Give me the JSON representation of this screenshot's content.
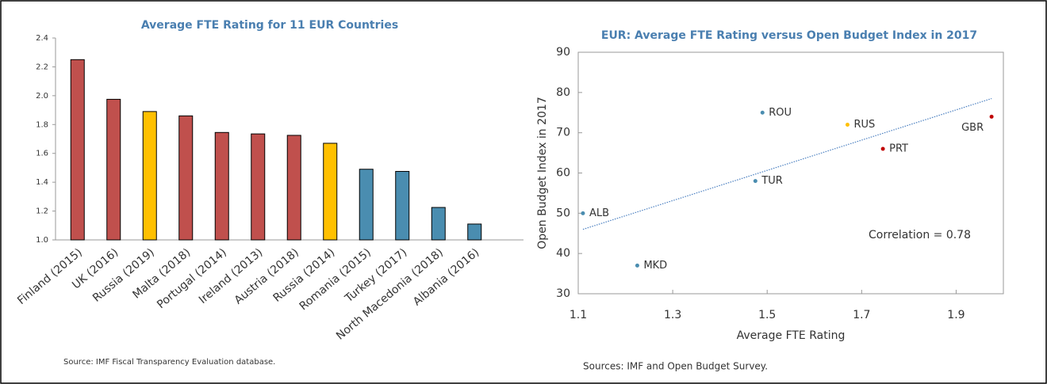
{
  "chart_data": [
    {
      "type": "bar",
      "title": "Average FTE Rating for 11 EUR Countries",
      "categories": [
        "Finland (2015)",
        "UK (2016)",
        "Russia (2019)",
        "Malta (2018)",
        "Portugal (2014)",
        "Ireland (2013)",
        "Austria (2018)",
        "Russia (2014)",
        "Romania (2015)",
        "Turkey (2017)",
        "North Macedonia (2018)",
        "Albania (2016)"
      ],
      "values": [
        2.25,
        1.975,
        1.89,
        1.86,
        1.745,
        1.735,
        1.725,
        1.67,
        1.49,
        1.475,
        1.225,
        1.11
      ],
      "colors": [
        "#c0504d",
        "#c0504d",
        "#ffc000",
        "#c0504d",
        "#c0504d",
        "#c0504d",
        "#c0504d",
        "#ffc000",
        "#4a8db0",
        "#4a8db0",
        "#4a8db0",
        "#4a8db0"
      ],
      "ylim": [
        1.0,
        2.4
      ],
      "yticks": [
        {
          "value": 1.0,
          "label": "1.0"
        },
        1.2,
        1.4,
        1.6,
        1.8,
        {
          "value": 2.0,
          "label": "2.0"
        },
        2.2,
        2.4
      ],
      "note": "Source: IMF Fiscal Transparency Evaluation database."
    },
    {
      "type": "scatter",
      "title": "EUR: Average FTE Rating versus Open Budget Index in 2017",
      "x_label": "Average FTE Rating",
      "y_label": "Open Budget Index in 2017",
      "labels": [
        "ALB",
        "MKD",
        "TUR",
        "ROU",
        "RUS",
        "PRT",
        "GBR"
      ],
      "x": [
        1.11,
        1.225,
        1.475,
        1.49,
        1.67,
        1.745,
        1.975
      ],
      "values": [
        50,
        37,
        58,
        75,
        72,
        66,
        74
      ],
      "colors": [
        "#4a8db0",
        "#4a8db0",
        "#4a8db0",
        "#4a8db0",
        "#ffc000",
        "#c00000",
        "#c00000"
      ],
      "trendline": {
        "x": [
          1.11,
          1.975
        ],
        "y": [
          46,
          78.5
        ],
        "color": "#4a7fc0"
      },
      "xlim": [
        1.1,
        2.0
      ],
      "xticks": [
        1.1,
        1.3,
        1.5,
        1.7,
        1.9
      ],
      "ylim": [
        30,
        90
      ],
      "yticks": [
        30,
        40,
        50,
        60,
        70,
        80,
        90
      ],
      "annotation": "Correlation = 0.78",
      "note": "Sources: IMF and Open Budget Survey."
    }
  ]
}
